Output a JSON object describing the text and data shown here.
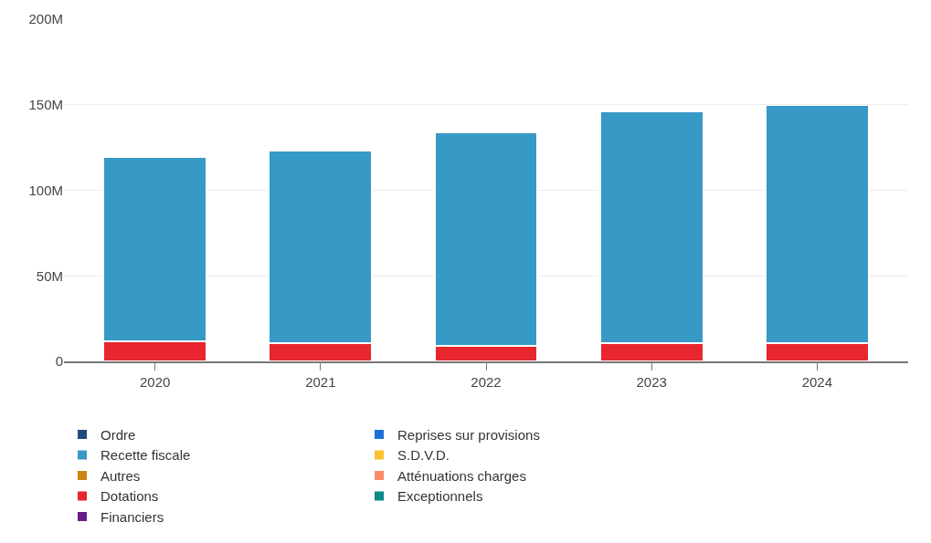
{
  "chart_data": {
    "type": "bar",
    "stacked": true,
    "categories": [
      "2020",
      "2021",
      "2022",
      "2023",
      "2024"
    ],
    "series": [
      {
        "name": "Ordre",
        "color": "#224b7a",
        "values": [
          null,
          null,
          null,
          null,
          null
        ]
      },
      {
        "name": "S.D.V.D.",
        "color": "#fbc02d",
        "values": [
          null,
          null,
          null,
          null,
          null
        ]
      },
      {
        "name": "Dotations",
        "color": "#e8262e",
        "values": [
          11.8,
          10.8,
          9.2,
          10.8,
          10.8
        ]
      },
      {
        "name": "Reprises sur provisions",
        "color": "#1a73d4",
        "values": [
          null,
          null,
          null,
          null,
          null
        ]
      },
      {
        "name": "Autres",
        "color": "#cc8412",
        "values": [
          null,
          null,
          null,
          null,
          null
        ]
      },
      {
        "name": "Exceptionnels",
        "color": "#0b8a86",
        "values": [
          null,
          null,
          null,
          null,
          null
        ]
      },
      {
        "name": "Recette fiscale",
        "color": "#3799c5",
        "values": [
          107.5,
          112.1,
          124.4,
          135.1,
          138.7
        ]
      },
      {
        "name": "Atténuations charges",
        "color": "#fb8c6a",
        "values": [
          null,
          null,
          null,
          null,
          null
        ]
      },
      {
        "name": "Financiers",
        "color": "#6a1b8a",
        "values": [
          null,
          null,
          null,
          null,
          null
        ]
      }
    ],
    "ylim": [
      0,
      200
    ],
    "yticks": [
      {
        "value": 0,
        "label": "0"
      },
      {
        "value": 50,
        "label": "50M"
      },
      {
        "value": 100,
        "label": "100M"
      },
      {
        "value": 150,
        "label": "150M"
      },
      {
        "value": 200,
        "label": "200M"
      }
    ],
    "grid": "y",
    "legend": "bottom"
  }
}
